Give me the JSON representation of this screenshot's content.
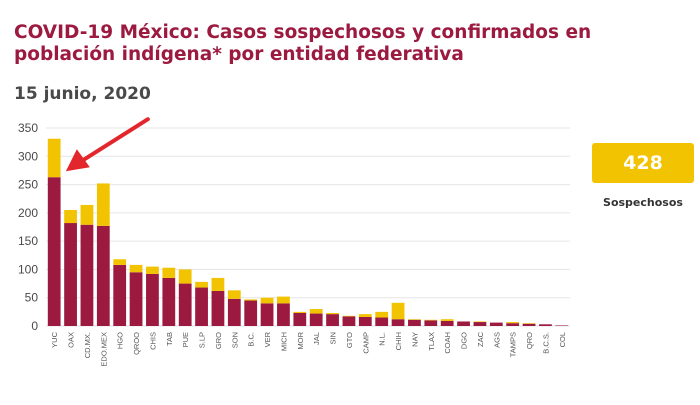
{
  "header": {
    "title": "COVID-19 México: Casos sospechosos y confirmados en población indígena* por entidad federativa",
    "date": "15 junio, 2020"
  },
  "callout": {
    "value": "428",
    "label": "Sospechosos"
  },
  "colors": {
    "confirmados": "#9c1a40",
    "sospechosos": "#f2c300",
    "arrow": "#e3262b",
    "grid": "#e6e6e6"
  },
  "annotation": {
    "arrow_color": "red",
    "points_to": "YUC"
  },
  "chart_data": {
    "type": "bar",
    "stacked": true,
    "ylim": [
      0,
      350
    ],
    "yticks": [
      0,
      50,
      100,
      150,
      200,
      250,
      300,
      350
    ],
    "grid": true,
    "categories": [
      "YUC",
      "OAX",
      "CD.MX.",
      "EDO.MEX",
      "HGO",
      "QROO",
      "CHIS",
      "TAB",
      "PUE",
      "S.LP",
      "GRO",
      "SON",
      "B.C.",
      "VER",
      "MICH",
      "MOR",
      "JAL",
      "SIN",
      "GTO",
      "CAMP",
      "N.L.",
      "CHIH",
      "NAY",
      "TLAX",
      "COAH",
      "DGO",
      "ZAC",
      "AGS",
      "TAMPS",
      "QRO",
      "B.C.S.",
      "COL"
    ],
    "series": [
      {
        "values": [
          263,
          182,
          179,
          177,
          108,
          95,
          92,
          85,
          75,
          68,
          62,
          48,
          45,
          40,
          40,
          23,
          22,
          21,
          17,
          16,
          15,
          12,
          11,
          10,
          9,
          8,
          7,
          6,
          5,
          4,
          3,
          1
        ]
      },
      {
        "values": [
          68,
          23,
          35,
          75,
          10,
          13,
          13,
          18,
          25,
          10,
          23,
          15,
          2,
          10,
          12,
          2,
          8,
          2,
          1,
          5,
          10,
          29,
          1,
          1,
          3,
          0,
          1,
          0,
          2,
          1,
          0,
          0
        ]
      }
    ]
  }
}
